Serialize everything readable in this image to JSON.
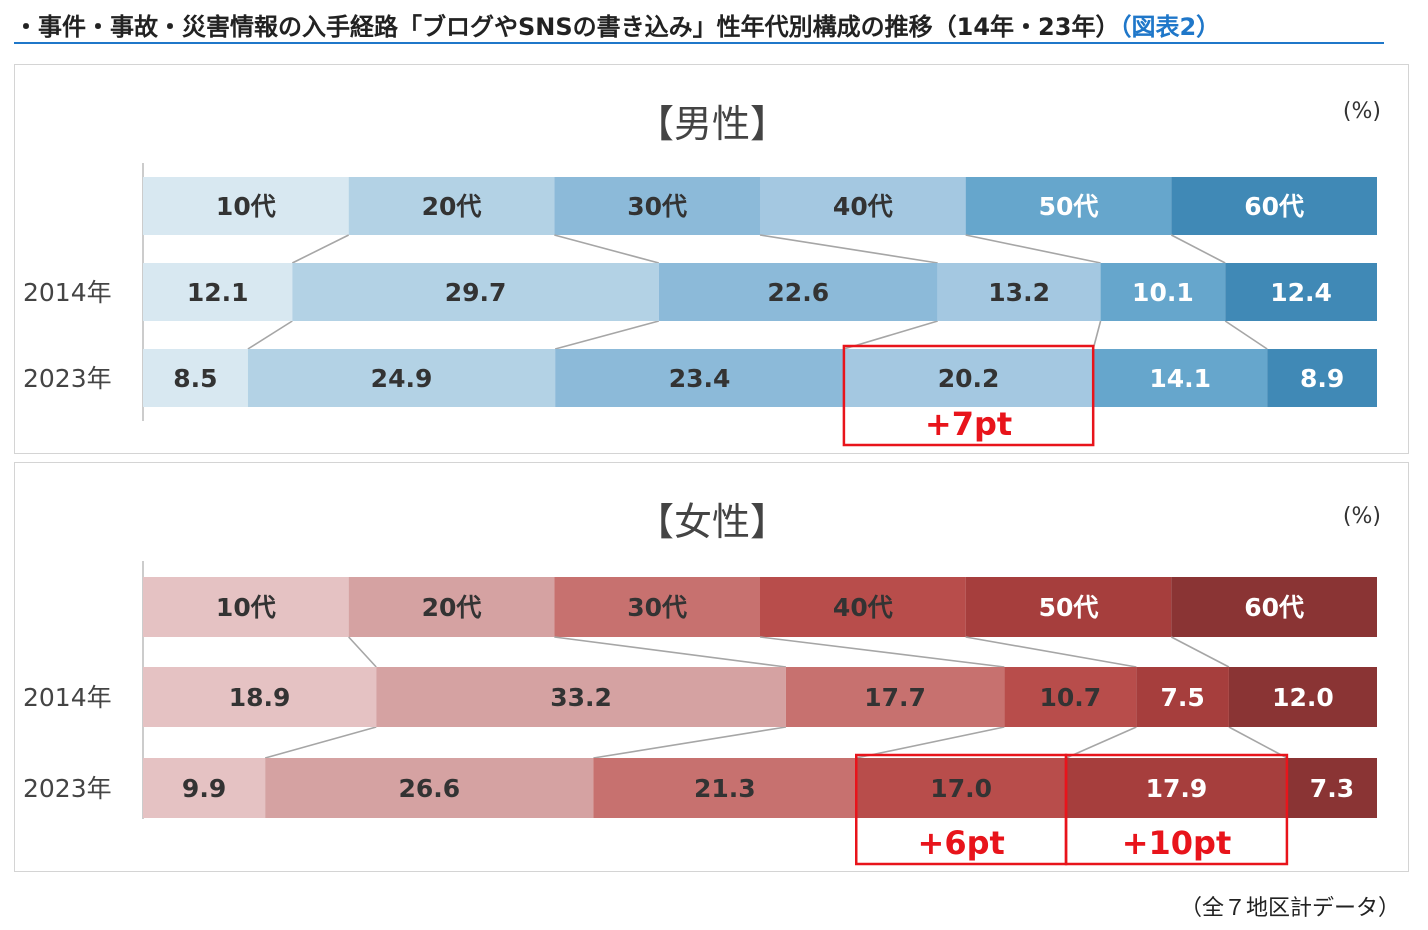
{
  "page_title": "・事件・事故・災害情報の入手経路「ブログやSNSの書き込み」性年代別構成の推移（14年・23年）",
  "figure_ref": "（図表2）",
  "footnote": "（全７地区計データ）",
  "chart_data": [
    {
      "type": "bar",
      "orientation": "horizontal-100%-stacked",
      "title": "【男性】",
      "unit": "(%)",
      "header_categories": [
        "10代",
        "20代",
        "30代",
        "40代",
        "50代",
        "60代"
      ],
      "rows": [
        "2014年",
        "2023年"
      ],
      "series": [
        {
          "name": "2014年",
          "values": [
            12.1,
            29.7,
            22.6,
            13.2,
            10.1,
            12.4
          ]
        },
        {
          "name": "2023年",
          "values": [
            8.5,
            24.9,
            23.4,
            20.2,
            14.1,
            8.9
          ]
        }
      ],
      "colors": [
        "#d8e8f1",
        "#b3d2e5",
        "#8cbad9",
        "#a4c8e1",
        "#66a6cc",
        "#4089b6"
      ],
      "label_colors": [
        "#333333",
        "#333333",
        "#333333",
        "#333333",
        "#ffffff",
        "#ffffff"
      ],
      "header_label_colors": [
        "#333333",
        "#333333",
        "#333333",
        "#333333",
        "#ffffff",
        "#ffffff"
      ],
      "annotations": [
        {
          "category": "40代",
          "text": "+7pt"
        }
      ]
    },
    {
      "type": "bar",
      "orientation": "horizontal-100%-stacked",
      "title": "【女性】",
      "unit": "(%)",
      "header_categories": [
        "10代",
        "20代",
        "30代",
        "40代",
        "50代",
        "60代"
      ],
      "rows": [
        "2014年",
        "2023年"
      ],
      "series": [
        {
          "name": "2014年",
          "values": [
            18.9,
            33.2,
            17.7,
            10.7,
            7.5,
            12.0
          ]
        },
        {
          "name": "2023年",
          "values": [
            9.9,
            26.6,
            21.3,
            17.0,
            17.9,
            7.3
          ]
        }
      ],
      "colors": [
        "#e5c2c3",
        "#d5a2a2",
        "#c7716f",
        "#b84d4b",
        "#a63e3d",
        "#8a3434"
      ],
      "label_colors": [
        "#333333",
        "#333333",
        "#333333",
        "#333333",
        "#ffffff",
        "#ffffff"
      ],
      "header_label_colors": [
        "#333333",
        "#333333",
        "#333333",
        "#333333",
        "#ffffff",
        "#ffffff"
      ],
      "annotations": [
        {
          "category": "40代",
          "text": "+6pt"
        },
        {
          "category": "50代",
          "text": "+10pt"
        }
      ]
    }
  ]
}
